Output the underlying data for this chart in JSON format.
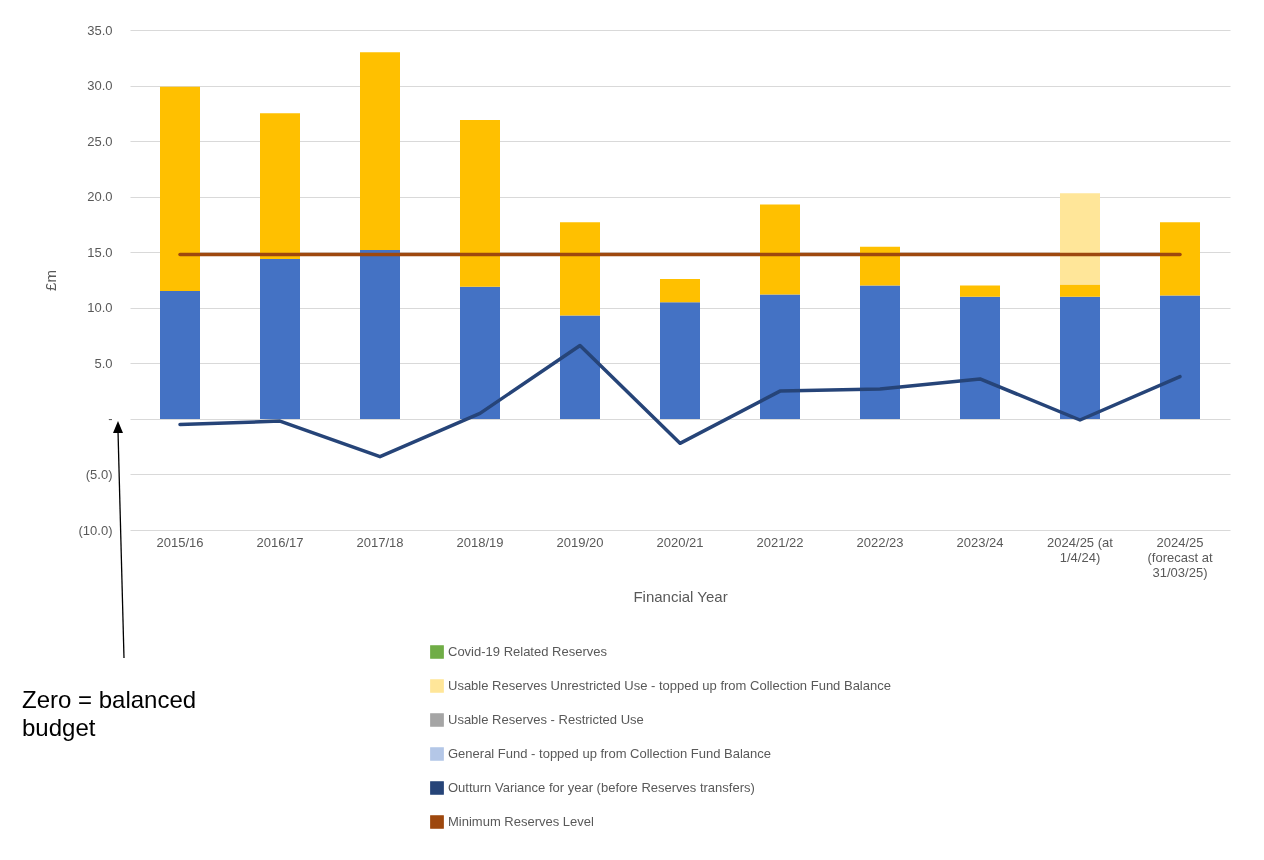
{
  "chart_data": {
    "type": "bar",
    "stacked": true,
    "ylabel": "£m",
    "xlabel": "Financial Year",
    "categories": [
      "2015/16",
      "2016/17",
      "2017/18",
      "2018/19",
      "2019/20",
      "2020/21",
      "2021/22",
      "2022/23",
      "2023/24",
      "2024/25 (at 1/4/24)",
      "2024/25 (forecast at 31/03/25)"
    ],
    "series": [
      {
        "color": "#4472c4",
        "values": [
          11.5,
          14.4,
          15.2,
          11.9,
          9.3,
          10.5,
          11.2,
          12.0,
          11.0,
          11.0,
          11.1
        ]
      },
      {
        "name": "General Fund - topped up from Collection Fund Balance",
        "color": "#b4c7e7",
        "values": [
          0,
          0,
          0,
          0,
          0,
          0,
          0,
          0,
          0,
          0,
          0
        ]
      },
      {
        "name": "Usable Reserves - Restricted Use",
        "color": "#a5a5a5",
        "values": [
          0,
          0,
          0,
          0,
          0,
          0,
          0,
          0,
          0,
          0,
          0
        ]
      },
      {
        "color": "#ffc000",
        "values": [
          18.4,
          13.1,
          17.8,
          15.0,
          8.4,
          2.1,
          8.1,
          3.5,
          1.0,
          1.1,
          6.6
        ]
      },
      {
        "name": "Usable Reserves Unrestricted Use - topped up from Collection Fund Balance",
        "color": "#ffe699",
        "values": [
          0,
          0,
          0,
          0,
          0,
          0,
          0,
          0,
          0,
          8.2,
          0
        ]
      },
      {
        "name": "Covid-19 Related Reserves",
        "color": "#70ad47",
        "values": [
          0,
          0,
          0,
          0,
          0,
          0,
          0,
          0,
          0,
          0,
          0
        ]
      },
      {
        "type": "line",
        "name": "Outturn Variance for year (before Reserves transfers)",
        "color": "#264478",
        "values": [
          -0.5,
          -0.2,
          -3.4,
          0.5,
          6.6,
          -2.2,
          2.5,
          2.7,
          3.6,
          -0.1,
          3.8
        ]
      },
      {
        "type": "line",
        "name": "Minimum Reserves Level",
        "color": "#9e480e",
        "values": [
          14.8,
          14.8,
          14.8,
          14.8,
          14.8,
          14.8,
          14.8,
          14.8,
          14.8,
          14.8,
          14.8
        ]
      }
    ],
    "ylim": [
      -10,
      35
    ],
    "yticks": [
      {
        "value": -10,
        "label": "(10.0)"
      },
      {
        "value": -5,
        "label": "(5.0)"
      },
      {
        "value": 0,
        "label": "-"
      },
      {
        "value": 5,
        "label": "5.0"
      },
      {
        "value": 10,
        "label": "10.0"
      },
      {
        "value": 15,
        "label": "15.0"
      },
      {
        "value": 20,
        "label": "20.0"
      },
      {
        "value": 25,
        "label": "25.0"
      },
      {
        "value": 30,
        "label": "30.0"
      },
      {
        "value": 35,
        "label": "35.0"
      }
    ],
    "grid": "y",
    "legend": "bottom",
    "annotations": [
      "Zero = balanced budget"
    ]
  }
}
